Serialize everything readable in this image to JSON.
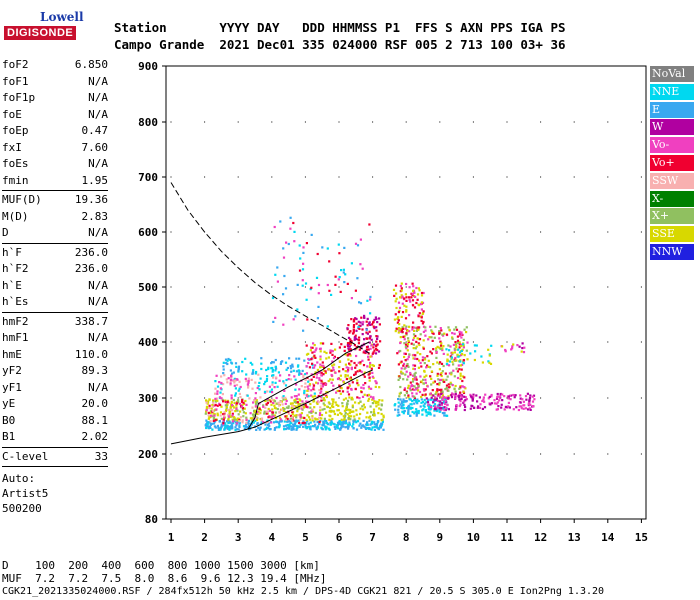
{
  "logo": {
    "top": "Lowell",
    "bottom": "DIGISONDE"
  },
  "header": {
    "line1": "Station       YYYY DAY   DDD HHMMSS P1  FFS S AXN PPS IGA PS",
    "line2": "Campo Grande  2021 Dec01 335 024000 RSF 005 2 713 100 03+ 36"
  },
  "params_group1": [
    {
      "label": "foF2",
      "value": "6.850"
    },
    {
      "label": "foF1",
      "value": "N/A"
    },
    {
      "label": "foF1p",
      "value": "N/A"
    },
    {
      "label": "foE",
      "value": "N/A"
    },
    {
      "label": "foEp",
      "value": "0.47"
    },
    {
      "label": "fxI",
      "value": "7.60"
    },
    {
      "label": "foEs",
      "value": "N/A"
    },
    {
      "label": "fmin",
      "value": "1.95"
    }
  ],
  "params_group2": [
    {
      "label": "MUF(D)",
      "value": "19.36"
    },
    {
      "label": "M(D)",
      "value": "2.83"
    },
    {
      "label": "D",
      "value": "N/A"
    }
  ],
  "params_group3": [
    {
      "label": "h`F",
      "value": "236.0"
    },
    {
      "label": "h`F2",
      "value": "236.0"
    },
    {
      "label": "h`E",
      "value": "N/A"
    },
    {
      "label": "h`Es",
      "value": "N/A"
    }
  ],
  "params_group4": [
    {
      "label": "hmF2",
      "value": "338.7"
    },
    {
      "label": "hmF1",
      "value": "N/A"
    },
    {
      "label": "hmE",
      "value": "110.0"
    },
    {
      "label": "yF2",
      "value": "89.3"
    },
    {
      "label": "yF1",
      "value": "N/A"
    },
    {
      "label": "yE",
      "value": "20.0"
    },
    {
      "label": "B0",
      "value": "88.1"
    },
    {
      "label": "B1",
      "value": "2.02"
    }
  ],
  "clevel": {
    "label": "C-level",
    "value": "33"
  },
  "auto": [
    "Auto:",
    "Artist5",
    "500200"
  ],
  "legend": [
    {
      "label": "NoVal",
      "color": "#808080"
    },
    {
      "label": "NNE",
      "color": "#00d8f0"
    },
    {
      "label": "E",
      "color": "#38a8f0"
    },
    {
      "label": "W",
      "color": "#b000a0"
    },
    {
      "label": "Vo-",
      "color": "#f040c0"
    },
    {
      "label": "Vo+",
      "color": "#f00030"
    },
    {
      "label": "SSW",
      "color": "#f8b0b0"
    },
    {
      "label": "X-",
      "color": "#008000"
    },
    {
      "label": "X+",
      "color": "#90c060"
    },
    {
      "label": "SSE",
      "color": "#d8d800"
    },
    {
      "label": "NNW",
      "color": "#2020e0"
    }
  ],
  "bottom": {
    "line1": "D    100  200  400  600  800 1000 1500 3000 [km]",
    "line2": "MUF  7.2  7.2  7.5  8.0  8.6  9.6 12.3 19.4 [MHz]",
    "line3": "CGK21_2021335024000.RSF / 284fx512h 50 kHz 2.5 km / DPS-4D CGK21 821 / 20.5 S 305.0 E Ion2Png 1.3.20"
  },
  "chart_data": {
    "type": "scatter",
    "x_ticks": [
      "1",
      "2",
      "3",
      "4",
      "5",
      "6",
      "7",
      "8",
      "9",
      "10",
      "11",
      "12",
      "13",
      "14",
      "15"
    ],
    "y_ticks": [
      "80",
      "200",
      "300",
      "400",
      "500",
      "600",
      "700",
      "800",
      "900"
    ],
    "xlim": [
      1,
      15
    ],
    "ylim": [
      80,
      900
    ]
  }
}
